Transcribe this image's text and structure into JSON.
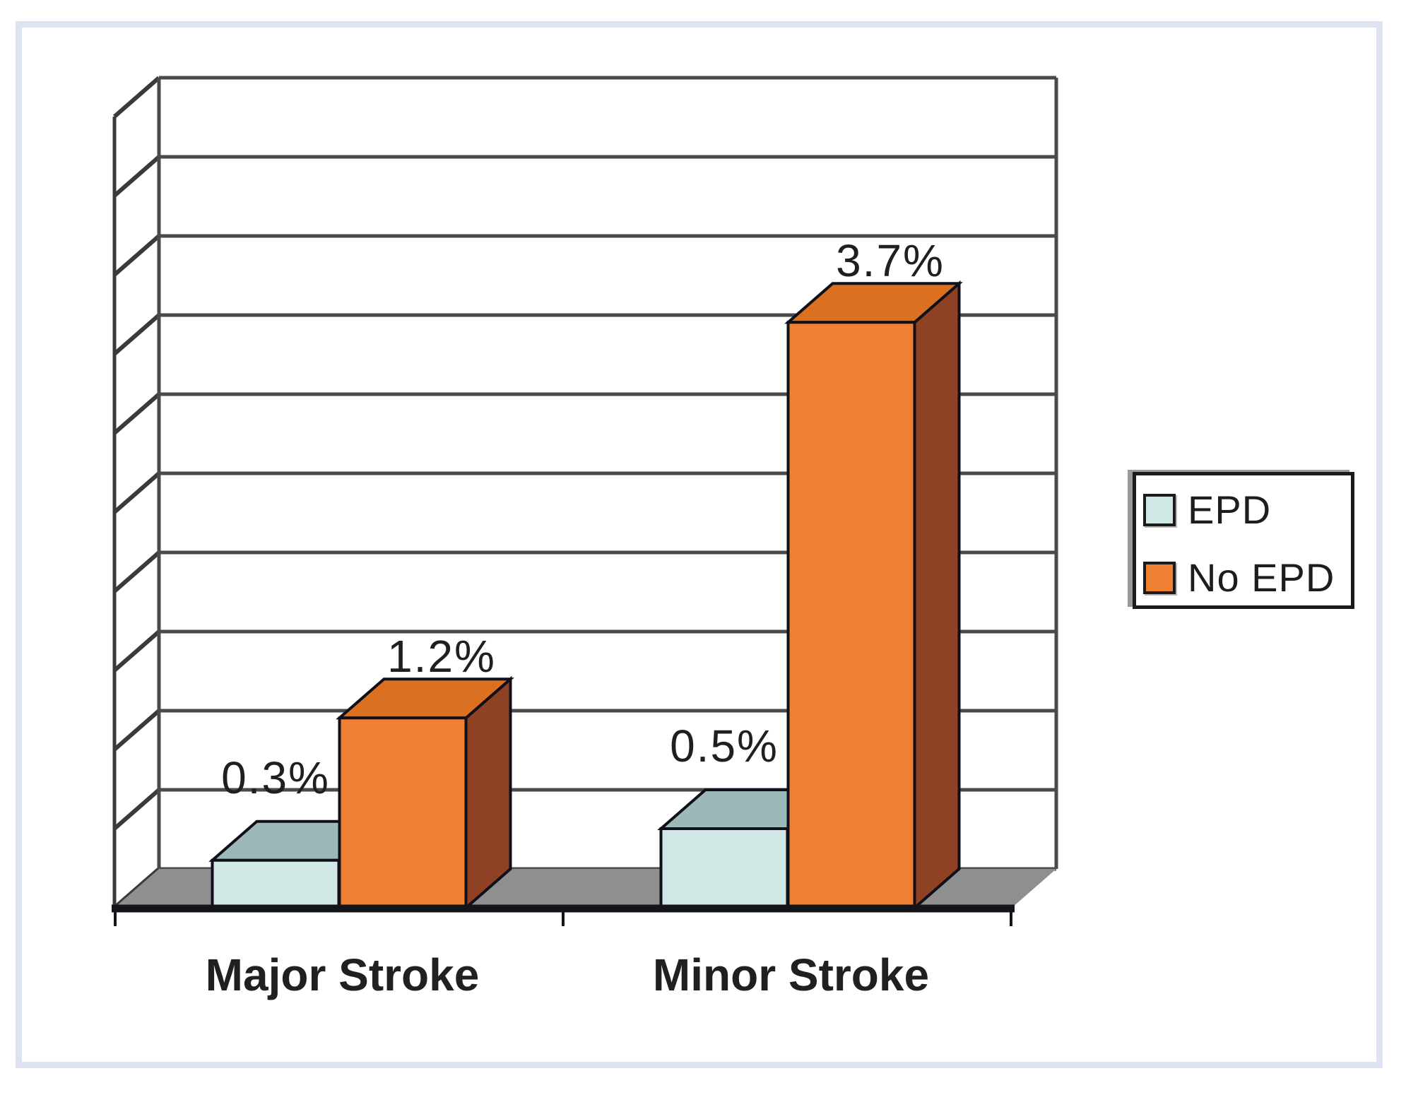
{
  "figure": {
    "background_color": "#ffffff",
    "frame_color": "#dee2f1"
  },
  "chart_data": {
    "type": "bar",
    "projection": "3d",
    "title": "",
    "xlabel": "",
    "ylabel": "",
    "categories": [
      "Major Stroke",
      "Minor Stroke"
    ],
    "series": [
      {
        "name": "EPD",
        "values": [
          0.3,
          0.5
        ],
        "labels": [
          "0.3%",
          "0.5%"
        ],
        "color_front": "#cfe8e6",
        "color_top": "#9db9b7",
        "color_side": "#85a3a1"
      },
      {
        "name": "No EPD",
        "values": [
          1.2,
          3.7
        ],
        "labels": [
          "1.2%",
          "3.7%"
        ],
        "color_front": "#ef8032",
        "color_top": "#db7120",
        "color_side": "#8e4123"
      }
    ],
    "ylim": [
      0,
      5
    ],
    "grid_step": 0.5,
    "grid_line_count": 11,
    "grid_on": true,
    "y_tick_labels_shown": false,
    "legend_position": "right",
    "colors": {
      "gridline": "#4a4a4a",
      "wall_edge": "#3a3a3a",
      "floor": "#8f8f8f",
      "baseline": "#14141b",
      "bar_outline": "#10101a",
      "label_text": "#1f1f1f"
    }
  },
  "legend": {
    "items": [
      {
        "label": "EPD",
        "swatch_color": "#cfe8e6"
      },
      {
        "label": "No EPD",
        "swatch_color": "#ef8032"
      }
    ]
  }
}
